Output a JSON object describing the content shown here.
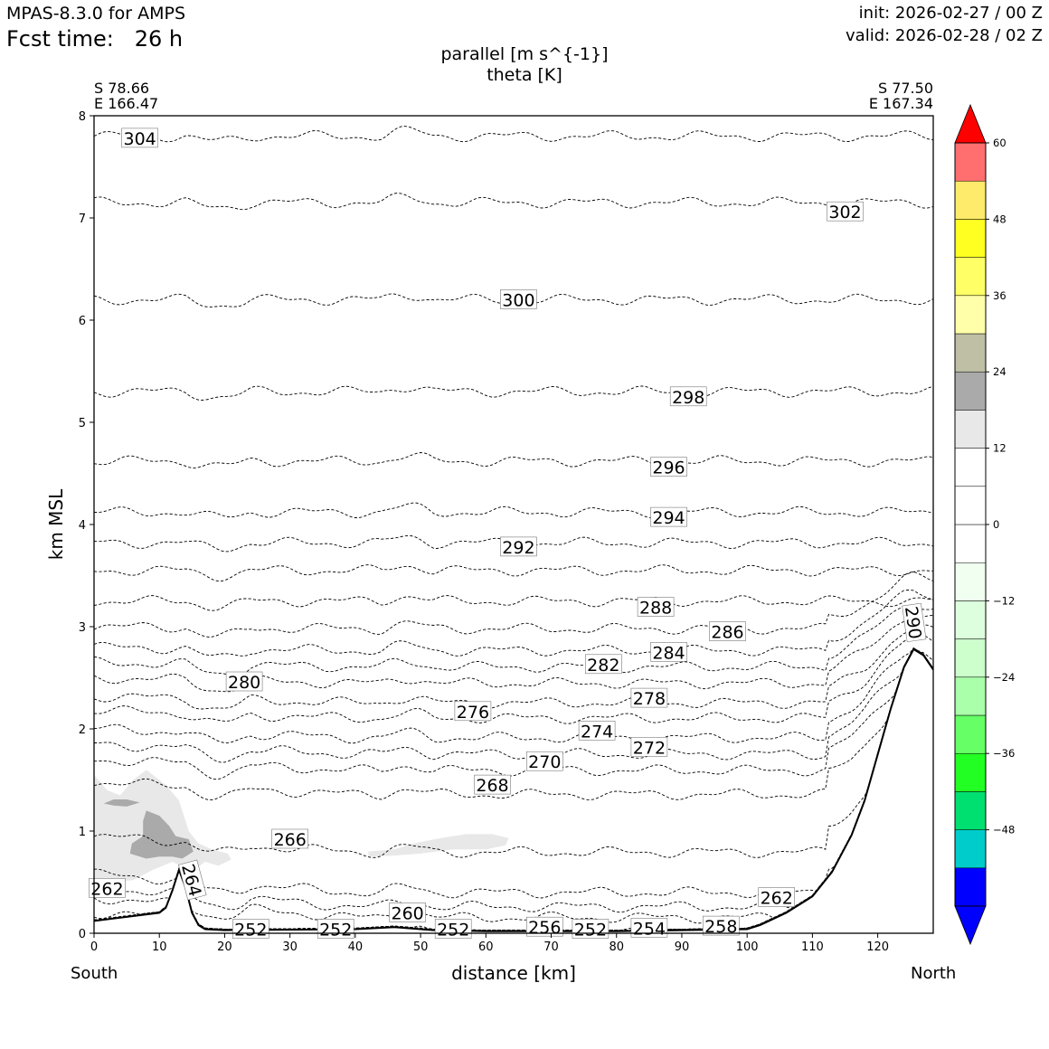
{
  "header": {
    "model": "MPAS-8.3.0 for AMPS",
    "fcst_time": "Fcst time:   26 h",
    "init": "init: 2026-02-27 / 00 Z",
    "valid": "valid: 2026-02-28 / 02 Z"
  },
  "chart_data": {
    "type": "contour",
    "title_line1": "parallel [m s^{-1}]",
    "title_line2": "theta [K]",
    "xlabel": "distance [km]",
    "ylabel": "km MSL",
    "xlim": [
      0,
      128.5
    ],
    "ylim": [
      0,
      8
    ],
    "xticks": [
      "0",
      "10",
      "20",
      "30",
      "40",
      "50",
      "60",
      "70",
      "80",
      "90",
      "100",
      "110",
      "120"
    ],
    "yticks": [
      "0",
      "1",
      "2",
      "3",
      "4",
      "5",
      "6",
      "7",
      "8"
    ],
    "left_end": {
      "lat": "S 78.66",
      "lon": "E 166.47",
      "direction": "South"
    },
    "right_end": {
      "lat": "S 77.50",
      "lon": "E 167.34",
      "direction": "North"
    },
    "terrain": [
      [
        0,
        0.12
      ],
      [
        5,
        0.16
      ],
      [
        10,
        0.2
      ],
      [
        11,
        0.25
      ],
      [
        12,
        0.42
      ],
      [
        13,
        0.62
      ],
      [
        14,
        0.45
      ],
      [
        15,
        0.2
      ],
      [
        16,
        0.08
      ],
      [
        17,
        0.04
      ],
      [
        20,
        0.03
      ],
      [
        40,
        0.04
      ],
      [
        46,
        0.06
      ],
      [
        52,
        0.03
      ],
      [
        60,
        0.02
      ],
      [
        80,
        0.02
      ],
      [
        100,
        0.04
      ],
      [
        102,
        0.08
      ],
      [
        106,
        0.2
      ],
      [
        110,
        0.36
      ],
      [
        113,
        0.6
      ],
      [
        116,
        0.96
      ],
      [
        118,
        1.3
      ],
      [
        120,
        1.75
      ],
      [
        122,
        2.2
      ],
      [
        124,
        2.6
      ],
      [
        125.5,
        2.78
      ],
      [
        127,
        2.72
      ],
      [
        128.5,
        2.58
      ]
    ],
    "isentropes": [
      {
        "theta": 304,
        "base_km": 7.8,
        "label": "304",
        "label_x": 7,
        "label_y": 7.78
      },
      {
        "theta": 302,
        "base_km": 7.15,
        "label": "302",
        "label_x": 115,
        "label_y": 7.06
      },
      {
        "theta": 300,
        "base_km": 6.2,
        "label": "300",
        "label_x": 65,
        "label_y": 6.2
      },
      {
        "theta": 298,
        "base_km": 5.3,
        "label": "298",
        "label_x": 91,
        "label_y": 5.25
      },
      {
        "theta": 296,
        "base_km": 4.62,
        "label": "296",
        "label_x": 88,
        "label_y": 4.56
      },
      {
        "theta": 294,
        "base_km": 4.12,
        "label": "294",
        "label_x": 88,
        "label_y": 4.07
      },
      {
        "theta": 292,
        "base_km": 3.82,
        "label": "292",
        "label_x": 65,
        "label_y": 3.78
      },
      {
        "theta": 290,
        "base_km": 3.55,
        "label": "290",
        "label_x": 125.5,
        "label_y": 3.04
      },
      {
        "theta": 288,
        "base_km": 3.25,
        "label": "288",
        "label_x": 86,
        "label_y": 3.19
      },
      {
        "theta": 286,
        "base_km": 3.0,
        "label": "286",
        "label_x": 97,
        "label_y": 2.95
      },
      {
        "theta": 284,
        "base_km": 2.8,
        "label": "284",
        "label_x": 88,
        "label_y": 2.75
      },
      {
        "theta": 282,
        "base_km": 2.65,
        "label": "282",
        "label_x": 78,
        "label_y": 2.63
      },
      {
        "theta": 280,
        "base_km": 2.5,
        "label": "280",
        "label_x": 23,
        "label_y": 2.46
      },
      {
        "theta": 278,
        "base_km": 2.32,
        "label": "278",
        "label_x": 85,
        "label_y": 2.3
      },
      {
        "theta": 276,
        "base_km": 2.18,
        "label": "276",
        "label_x": 58,
        "label_y": 2.17
      },
      {
        "theta": 274,
        "base_km": 2.0,
        "label": "274",
        "label_x": 77,
        "label_y": 1.98
      },
      {
        "theta": 272,
        "base_km": 1.85,
        "label": "272",
        "label_x": 85,
        "label_y": 1.82
      },
      {
        "theta": 270,
        "base_km": 1.7,
        "label": "270",
        "label_x": 69,
        "label_y": 1.68
      },
      {
        "theta": 268,
        "base_km": 1.48,
        "label": "268",
        "label_x": 61,
        "label_y": 1.45
      },
      {
        "theta": 266,
        "base_km": 0.95,
        "label": "266",
        "label_x": 30,
        "label_y": 0.92
      },
      {
        "theta": 264,
        "base_km": 0.58,
        "label": "264",
        "label_x": 15,
        "label_y": 0.52
      },
      {
        "theta": 262,
        "base_km": 0.45,
        "label": "262",
        "label_x": 2,
        "label_y": 0.44
      },
      {
        "theta": 262,
        "base_km": 0.35,
        "label": "262",
        "label_x": 104.5,
        "label_y": 0.35
      },
      {
        "theta": 260,
        "base_km": 0.2,
        "label": "260",
        "label_x": 48,
        "label_y": 0.2
      },
      {
        "theta": 258,
        "base_km": 0.07,
        "label": "258",
        "label_x": 96,
        "label_y": 0.07
      },
      {
        "theta": 256,
        "base_km": 0.06,
        "label": "256",
        "label_x": 69,
        "label_y": 0.06
      },
      {
        "theta": 254,
        "base_km": 0.05,
        "label": "254",
        "label_x": 85,
        "label_y": 0.05
      },
      {
        "theta": 252,
        "base_km": 0.04,
        "label": "252",
        "label_x": 24,
        "label_y": 0.04
      },
      {
        "theta": 252,
        "base_km": 0.04,
        "label": "252",
        "label_x": 37,
        "label_y": 0.04
      },
      {
        "theta": 252,
        "base_km": 0.04,
        "label": "252",
        "label_x": 55,
        "label_y": 0.04
      },
      {
        "theta": 252,
        "base_km": 0.04,
        "label": "252",
        "label_x": 76,
        "label_y": 0.04
      }
    ],
    "shaded_regions": [
      {
        "name": "speed-6-12-region-south",
        "color": "#e8e8e8",
        "poly": [
          [
            0,
            1.55
          ],
          [
            2,
            1.4
          ],
          [
            4,
            1.35
          ],
          [
            6,
            1.5
          ],
          [
            8,
            1.6
          ],
          [
            11,
            1.45
          ],
          [
            13,
            1.3
          ],
          [
            14.5,
            1.0
          ],
          [
            16,
            0.88
          ],
          [
            18,
            0.82
          ],
          [
            20.5,
            0.78
          ],
          [
            21,
            0.72
          ],
          [
            19,
            0.66
          ],
          [
            17,
            0.7
          ],
          [
            15,
            0.6
          ],
          [
            12,
            0.7
          ],
          [
            9,
            0.62
          ],
          [
            6,
            0.52
          ],
          [
            3,
            0.5
          ],
          [
            0,
            0.46
          ]
        ]
      },
      {
        "name": "speed-6-12-region-middle",
        "color": "#e8e8e8",
        "poly": [
          [
            42,
            0.8
          ],
          [
            46,
            0.82
          ],
          [
            49,
            0.88
          ],
          [
            53,
            0.93
          ],
          [
            57,
            0.97
          ],
          [
            61,
            0.97
          ],
          [
            63.5,
            0.93
          ],
          [
            63,
            0.86
          ],
          [
            60,
            0.82
          ],
          [
            55,
            0.82
          ],
          [
            50,
            0.78
          ],
          [
            46,
            0.76
          ],
          [
            42,
            0.75
          ]
        ]
      },
      {
        "name": "speed-12-18-region-south",
        "color": "#aaaaaa",
        "poly": [
          [
            8,
            1.2
          ],
          [
            10,
            1.15
          ],
          [
            11.5,
            1.05
          ],
          [
            12.5,
            0.95
          ],
          [
            14.5,
            0.92
          ],
          [
            15.2,
            0.8
          ],
          [
            13.5,
            0.73
          ],
          [
            12,
            0.75
          ],
          [
            10,
            0.75
          ],
          [
            8,
            0.73
          ],
          [
            5.5,
            0.78
          ],
          [
            5.8,
            0.88
          ],
          [
            7.5,
            0.95
          ],
          [
            7.5,
            1.1
          ]
        ]
      },
      {
        "name": "speed-12-18-region-small",
        "color": "#aaaaaa",
        "poly": [
          [
            1.5,
            1.27
          ],
          [
            3,
            1.31
          ],
          [
            5,
            1.31
          ],
          [
            7,
            1.28
          ],
          [
            5,
            1.24
          ],
          [
            3,
            1.25
          ]
        ]
      }
    ],
    "colorbar": {
      "label_values": [
        "60",
        "48",
        "36",
        "24",
        "12",
        "0",
        "−12",
        "−24",
        "−36",
        "−48"
      ],
      "min": -60,
      "max": 60,
      "step": 6,
      "colors": [
        "#0000ff",
        "#00cccc",
        "#00e070",
        "#22ff22",
        "#66ff66",
        "#aaffaa",
        "#ccffcc",
        "#ddffdd",
        "#f0fff0",
        "#ffffff",
        "#ffffff",
        "#ffffff",
        "#e8e8e8",
        "#aaaaaa",
        "#bfbfa5",
        "#ffffaa",
        "#ffff66",
        "#ffff22",
        "#ffeb6b",
        "#ff6f6f",
        "#ff0000"
      ],
      "extend_low_color": "#0000ff",
      "extend_high_color": "#ff0000"
    }
  }
}
